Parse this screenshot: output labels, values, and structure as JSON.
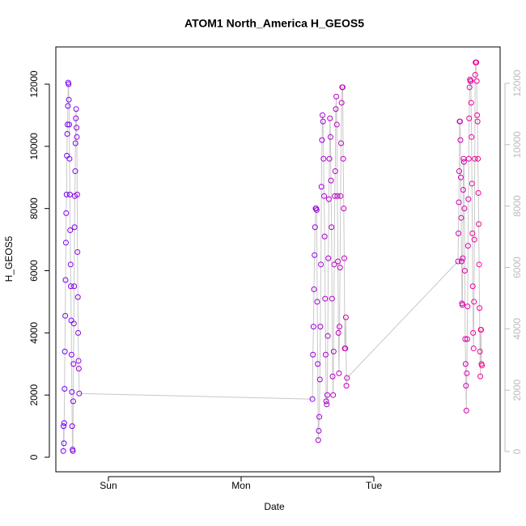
{
  "chart_data": {
    "type": "scatter",
    "title": "ATOM1 North_America H_GEOS5",
    "x_label": "Date",
    "y_label": "H_GEOS5",
    "xlim": [
      -0.396,
      2.951
    ],
    "xticks": [
      {
        "value": 0,
        "label": "Sun"
      },
      {
        "value": 1,
        "label": "Mon"
      },
      {
        "value": 2,
        "label": "Tue"
      }
    ],
    "ylim": [
      -468,
      13197
    ],
    "yticks": [
      0,
      2000,
      4000,
      6000,
      8000,
      10000,
      12000
    ],
    "y2lim": [
      -659,
      13187
    ],
    "y2ticks": [
      0,
      2000,
      4000,
      6000,
      8000,
      10000,
      12000
    ],
    "y2_axis_color": "#bbbbbb",
    "line_color": "#c8c8c8",
    "colors": [
      "#6a00ff",
      "#ff0090"
    ],
    "x": [
      -0.34,
      -0.338,
      -0.335,
      -0.333,
      -0.33,
      -0.328,
      -0.325,
      -0.323,
      -0.32,
      -0.318,
      -0.315,
      -0.313,
      -0.31,
      -0.308,
      -0.305,
      -0.303,
      -0.3,
      -0.298,
      -0.295,
      -0.293,
      -0.29,
      -0.288,
      -0.285,
      -0.283,
      -0.28,
      -0.278,
      -0.275,
      -0.273,
      -0.27,
      -0.268,
      -0.265,
      -0.263,
      -0.26,
      -0.258,
      -0.255,
      -0.253,
      -0.25,
      -0.248,
      -0.245,
      -0.243,
      -0.24,
      -0.238,
      -0.235,
      -0.233,
      -0.23,
      -0.228,
      -0.225,
      -0.223,
      -0.22,
      1.537,
      1.541,
      1.545,
      1.549,
      1.553,
      1.557,
      1.561,
      1.565,
      1.569,
      1.573,
      1.577,
      1.581,
      1.585,
      1.589,
      1.593,
      1.597,
      1.601,
      1.605,
      1.609,
      1.613,
      1.617,
      1.621,
      1.625,
      1.629,
      1.633,
      1.637,
      1.641,
      1.645,
      1.649,
      1.653,
      1.657,
      1.661,
      1.665,
      1.669,
      1.673,
      1.677,
      1.681,
      1.685,
      1.689,
      1.693,
      1.697,
      1.701,
      1.705,
      1.709,
      1.713,
      1.717,
      1.721,
      1.725,
      1.729,
      1.733,
      1.737,
      1.741,
      1.745,
      1.749,
      1.753,
      1.757,
      1.761,
      1.765,
      1.769,
      1.773,
      1.777,
      1.781,
      1.785,
      1.789,
      1.793,
      1.797,
      2.634,
      2.637,
      2.64,
      2.643,
      2.646,
      2.649,
      2.652,
      2.655,
      2.658,
      2.661,
      2.664,
      2.667,
      2.67,
      2.673,
      2.676,
      2.679,
      2.682,
      2.685,
      2.688,
      2.691,
      2.694,
      2.697,
      2.7,
      2.703,
      2.706,
      2.709,
      2.712,
      2.715,
      2.718,
      2.721,
      2.724,
      2.727,
      2.73,
      2.733,
      2.736,
      2.739,
      2.742,
      2.745,
      2.748,
      2.751,
      2.754,
      2.757,
      2.76,
      2.763,
      2.766,
      2.769,
      2.772,
      2.775,
      2.778,
      2.781,
      2.784,
      2.787,
      2.79,
      2.793,
      2.796,
      2.799,
      2.802,
      2.805,
      2.808,
      2.811,
      2.814
    ],
    "series": [
      {
        "values": [
          200,
          1000,
          450,
          1100,
          2200,
          3400,
          4550,
          5700,
          6900,
          7850,
          8450,
          9700,
          10400,
          10700,
          11300,
          12050,
          12000,
          11500,
          10700,
          9600,
          8450,
          7300,
          6200,
          5500,
          4400,
          3300,
          2100,
          1000,
          250,
          200,
          1800,
          3000,
          4300,
          5500,
          7400,
          8400,
          9200,
          10100,
          10900,
          11200,
          10600,
          10300,
          8450,
          6600,
          5150,
          4000,
          3100,
          2850,
          2050,
          1870,
          3300,
          4200,
          5400,
          6500,
          7400,
          8000,
          8000,
          7950,
          5000,
          3000,
          550,
          850,
          1300,
          2500,
          4200,
          6200,
          8700,
          10200,
          11000,
          10800,
          9600,
          8400,
          7100,
          5100,
          3300,
          1800,
          1700,
          2000,
          3900,
          6400,
          8300,
          9600,
          10900,
          10300,
          8900,
          7400,
          5100,
          2600,
          2000,
          3400,
          6200,
          8400,
          9200,
          11200,
          11600,
          10700,
          8400,
          6300,
          4000,
          2700,
          4200,
          6100,
          8400,
          10100,
          11400,
          11900,
          11900,
          9600,
          8000,
          6400,
          3500,
          3500,
          4500,
          2300,
          2550,
          6300,
          7200,
          8200,
          9200,
          10800,
          10800,
          10200,
          9000,
          7700,
          6300,
          4950,
          4900,
          6400,
          8600,
          9600,
          9500,
          8000,
          6000,
          3800,
          3000,
          2300,
          1500,
          2700,
          3800,
          4850,
          6800,
          8300,
          9600,
          10900,
          11900,
          12150,
          12100,
          12100,
          11400,
          10300,
          8800,
          7200,
          5500,
          4000,
          3500,
          5000,
          7000,
          9600,
          12300,
          12700,
          12700,
          12700,
          12100,
          11000,
          10800,
          9600,
          8500,
          7500,
          6200,
          4800,
          3400,
          2600,
          4100,
          4100,
          3000,
          2950
        ]
      }
    ]
  }
}
